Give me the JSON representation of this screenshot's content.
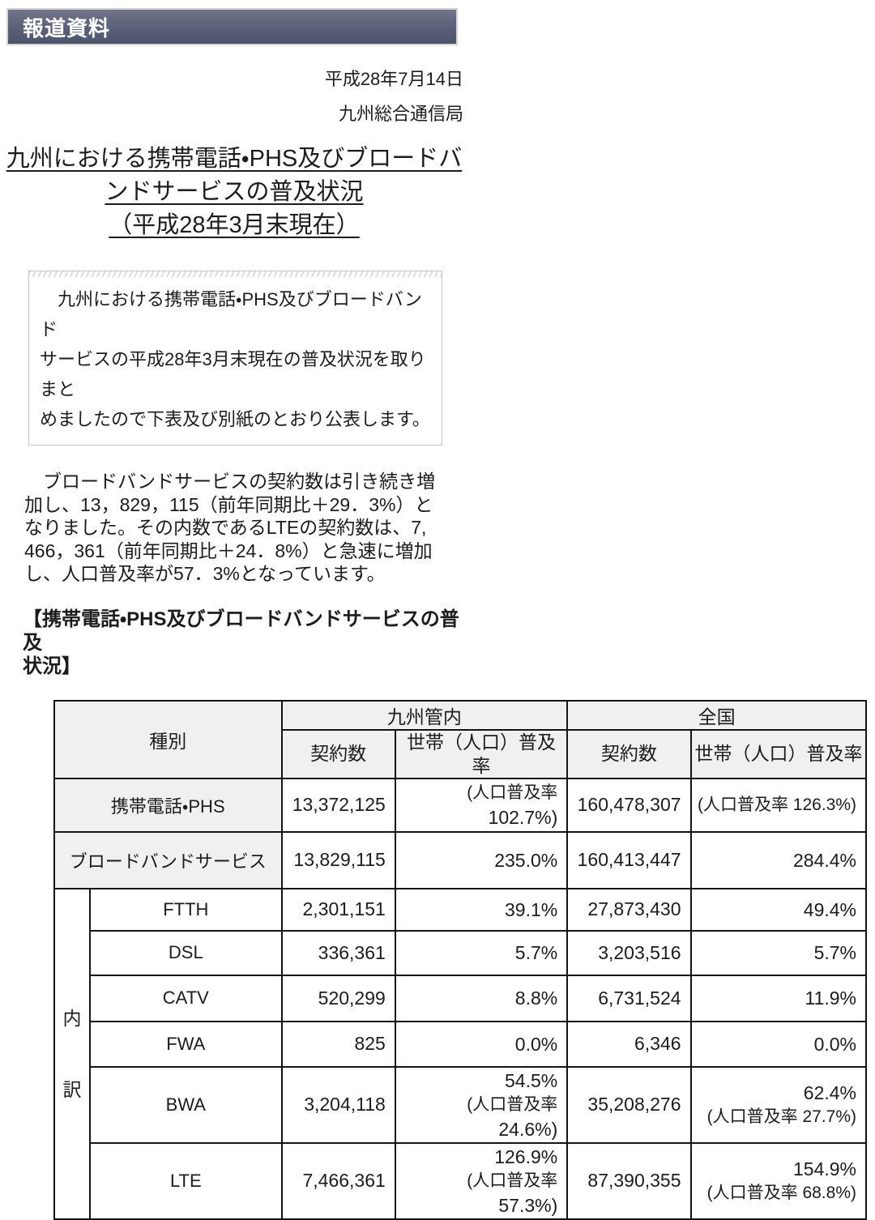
{
  "banner": {
    "label": "報道資料"
  },
  "meta": {
    "date": "平成28年7月14日",
    "organization": "九州総合通信局"
  },
  "title_lines": [
    "九州における携帯電話・PHS及びブロードバ",
    "ンドサービスの普及状況",
    "（平成28年3月末現在）"
  ],
  "lead_box_lines": [
    "　九州における携帯電話・PHS及びブロードバンド",
    "サービスの平成28年3月末現在の普及状況を取りまと",
    "めましたので下表及び別紙のとおり公表します。"
  ],
  "body_lines": [
    "　ブロードバンドサービスの契約数は引き続き増",
    "加し、13，829，115（前年同期比＋29．3%）と",
    "なりました。その内数であるLTEの契約数は、7,",
    "466，361（前年同期比＋24．8%）と急速に増加",
    "し、人口普及率が57．3%となっています。"
  ],
  "heading_lines": [
    "【携帯電話・PHS及びブロードバンドサービスの普及",
    "状況】"
  ],
  "colors": {
    "banner_top": "#70758a",
    "banner_bottom": "#4e536c",
    "table_header_bg": "#f0f0f0",
    "table_border": "#141414"
  },
  "table": {
    "header": {
      "category": "種別",
      "region_kyushu": "九州管内",
      "region_national": "全国",
      "subscriptions": "契約数",
      "penetration_kyushu": "世帯（人口）普及率",
      "penetration_national": "世帯（人口）普及率"
    },
    "breakdown_label": "内訳",
    "rows": [
      {
        "label": "携帯電話・PHS",
        "kyushu_subscriptions": "13,372,125",
        "kyushu_rate_lines": [
          "(人口普及率",
          "102.7%)"
        ],
        "national_subscriptions": "160,478,307",
        "national_rate_lines": [
          "(人口普及率 126.3%)"
        ]
      },
      {
        "label": "ブロードバンドサービス",
        "kyushu_subscriptions": "13,829,115",
        "kyushu_rate_lines": [
          "235.0%"
        ],
        "national_subscriptions": "160,413,447",
        "national_rate_lines": [
          "284.4%"
        ]
      },
      {
        "label": "FTTH",
        "kyushu_subscriptions": "2,301,151",
        "kyushu_rate_lines": [
          "39.1%"
        ],
        "national_subscriptions": "27,873,430",
        "national_rate_lines": [
          "49.4%"
        ]
      },
      {
        "label": "DSL",
        "kyushu_subscriptions": "336,361",
        "kyushu_rate_lines": [
          "5.7%"
        ],
        "national_subscriptions": "3,203,516",
        "national_rate_lines": [
          "5.7%"
        ]
      },
      {
        "label": "CATV",
        "kyushu_subscriptions": "520,299",
        "kyushu_rate_lines": [
          "8.8%"
        ],
        "national_subscriptions": "6,731,524",
        "national_rate_lines": [
          "11.9%"
        ]
      },
      {
        "label": "FWA",
        "kyushu_subscriptions": "825",
        "kyushu_rate_lines": [
          "0.0%"
        ],
        "national_subscriptions": "6,346",
        "national_rate_lines": [
          "0.0%"
        ]
      },
      {
        "label": "BWA",
        "kyushu_subscriptions": "3,204,118",
        "kyushu_rate_lines": [
          "54.5%",
          "(人口普及率",
          "24.6%)"
        ],
        "national_subscriptions": "35,208,276",
        "national_rate_lines": [
          "62.4%",
          "(人口普及率  27.7%)"
        ]
      },
      {
        "label": "LTE",
        "kyushu_subscriptions": "7,466,361",
        "kyushu_rate_lines": [
          "126.9%",
          "(人口普及率",
          "57.3%)"
        ],
        "national_subscriptions": "87,390,355",
        "national_rate_lines": [
          "154.9%",
          "(人口普及率  68.8%)"
        ]
      }
    ]
  }
}
